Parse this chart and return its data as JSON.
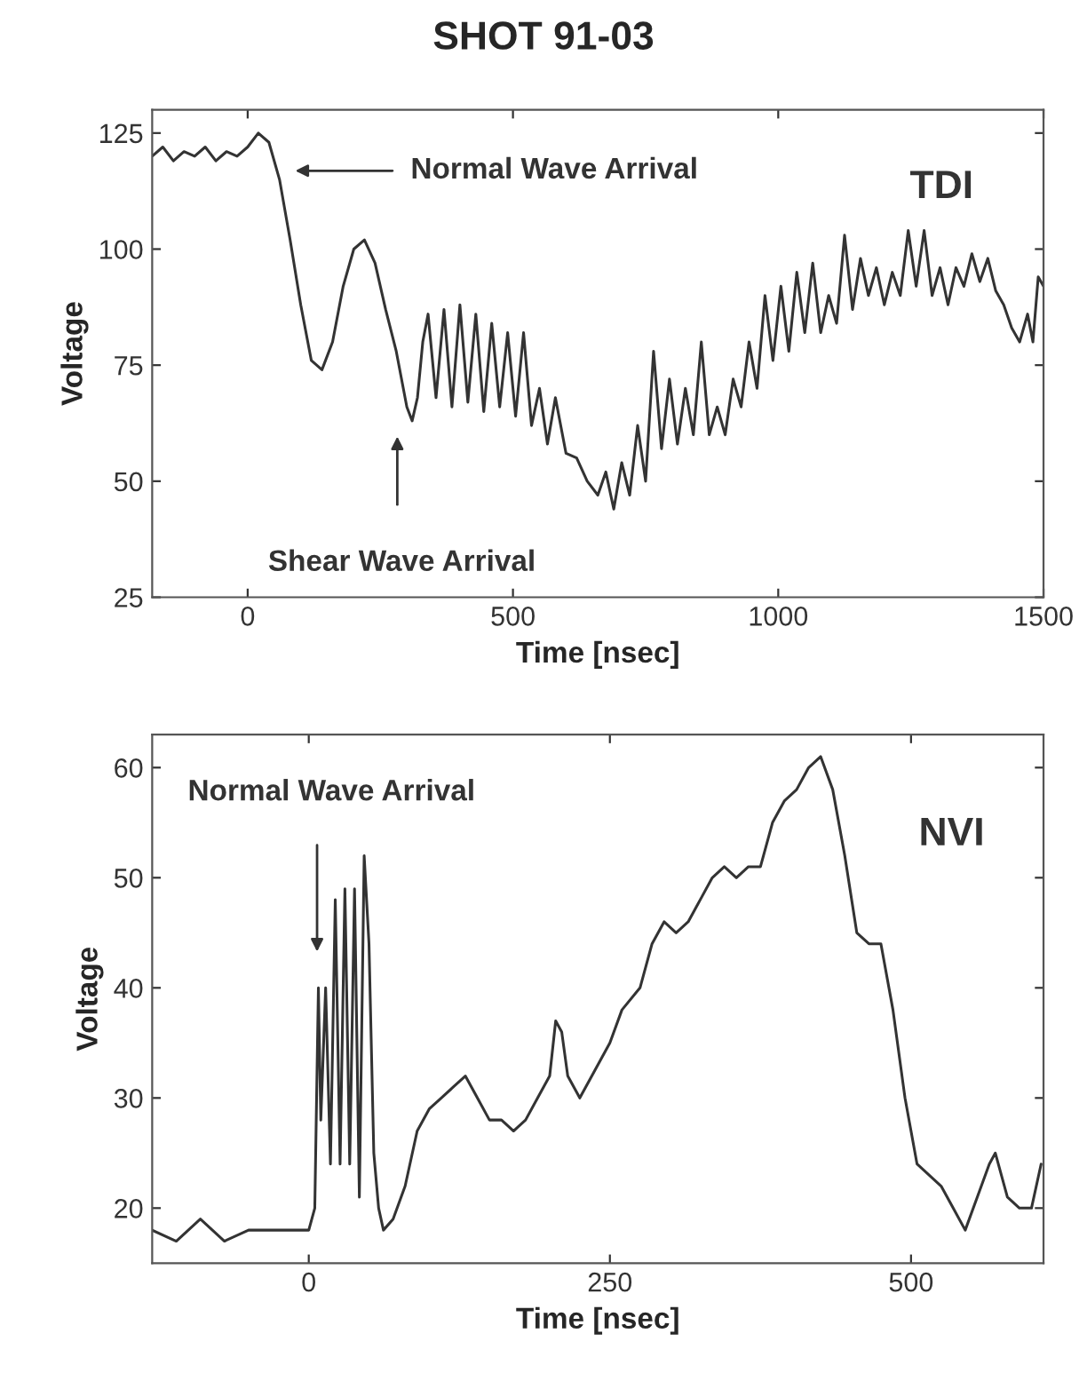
{
  "chart_data": [
    {
      "type": "line",
      "title": "SHOT 91-03",
      "xlabel": "Time [nsec]",
      "ylabel": "Voltage",
      "xlim": [
        -180,
        1500
      ],
      "ylim": [
        25,
        130
      ],
      "xticks": [
        0,
        500,
        1000,
        1500
      ],
      "yticks": [
        25,
        50,
        75,
        100,
        125
      ],
      "grid": false,
      "line_style": "solid",
      "marker": "none",
      "annotations": [
        "Normal Wave Arrival",
        "Shear Wave Arrival",
        "TDI"
      ],
      "series": [
        {
          "color": "#333333",
          "x": [
            -180,
            -160,
            -140,
            -120,
            -100,
            -80,
            -60,
            -40,
            -20,
            0,
            20,
            40,
            60,
            80,
            100,
            120,
            140,
            160,
            180,
            200,
            220,
            240,
            260,
            280,
            300,
            310,
            320,
            330,
            340,
            355,
            370,
            385,
            400,
            415,
            430,
            445,
            460,
            475,
            490,
            505,
            520,
            535,
            550,
            565,
            580,
            600,
            620,
            640,
            660,
            675,
            690,
            705,
            720,
            735,
            750,
            765,
            780,
            795,
            810,
            825,
            840,
            855,
            870,
            885,
            900,
            915,
            930,
            945,
            960,
            975,
            990,
            1005,
            1020,
            1035,
            1050,
            1065,
            1080,
            1095,
            1110,
            1125,
            1140,
            1155,
            1170,
            1185,
            1200,
            1215,
            1230,
            1245,
            1260,
            1275,
            1290,
            1305,
            1320,
            1335,
            1350,
            1365,
            1380,
            1395,
            1410,
            1425,
            1440,
            1455,
            1470,
            1480,
            1490,
            1500
          ],
          "values": [
            120,
            122,
            119,
            121,
            120,
            122,
            119,
            121,
            120,
            122,
            125,
            123,
            115,
            102,
            88,
            76,
            74,
            80,
            92,
            100,
            102,
            97,
            87,
            78,
            66,
            63,
            68,
            80,
            86,
            68,
            87,
            66,
            88,
            67,
            86,
            65,
            84,
            66,
            82,
            64,
            82,
            62,
            70,
            58,
            68,
            56,
            55,
            50,
            47,
            52,
            44,
            54,
            47,
            62,
            50,
            78,
            57,
            72,
            58,
            70,
            60,
            80,
            60,
            66,
            60,
            72,
            66,
            80,
            70,
            90,
            76,
            92,
            78,
            95,
            82,
            97,
            82,
            90,
            84,
            103,
            87,
            98,
            90,
            96,
            88,
            95,
            90,
            104,
            92,
            104,
            90,
            96,
            88,
            96,
            92,
            99,
            93,
            98,
            91,
            88,
            83,
            80,
            86,
            80,
            94,
            92
          ]
        }
      ]
    },
    {
      "type": "line",
      "xlabel": "Time [nsec]",
      "ylabel": "Voltage",
      "xlim": [
        -130,
        610
      ],
      "ylim": [
        15,
        63
      ],
      "xticks": [
        0,
        250,
        500
      ],
      "yticks": [
        20,
        30,
        40,
        50,
        60
      ],
      "grid": false,
      "line_style": "solid",
      "marker": "none",
      "annotations": [
        "Normal Wave Arrival",
        "NVI"
      ],
      "series": [
        {
          "color": "#333333",
          "x": [
            -130,
            -110,
            -90,
            -70,
            -50,
            -30,
            -10,
            0,
            5,
            8,
            10,
            14,
            18,
            22,
            26,
            30,
            34,
            38,
            42,
            46,
            50,
            54,
            58,
            62,
            70,
            80,
            90,
            100,
            110,
            120,
            130,
            140,
            150,
            160,
            170,
            180,
            190,
            200,
            205,
            210,
            215,
            225,
            235,
            250,
            260,
            275,
            285,
            295,
            305,
            315,
            325,
            335,
            345,
            355,
            365,
            375,
            385,
            395,
            405,
            415,
            425,
            435,
            445,
            455,
            465,
            475,
            485,
            495,
            505,
            515,
            525,
            535,
            545,
            555,
            565,
            570,
            580,
            590,
            600,
            608
          ],
          "values": [
            18,
            17,
            19,
            17,
            18,
            18,
            18,
            18,
            20,
            40,
            28,
            40,
            24,
            48,
            24,
            49,
            24,
            49,
            21,
            52,
            44,
            25,
            20,
            18,
            19,
            22,
            27,
            29,
            30,
            31,
            32,
            30,
            28,
            28,
            27,
            28,
            30,
            32,
            37,
            36,
            32,
            30,
            32,
            35,
            38,
            40,
            44,
            46,
            45,
            46,
            48,
            50,
            51,
            50,
            51,
            51,
            55,
            57,
            58,
            60,
            61,
            58,
            52,
            45,
            44,
            44,
            38,
            30,
            24,
            23,
            22,
            20,
            18,
            21,
            24,
            25,
            21,
            20,
            20,
            24
          ]
        }
      ]
    }
  ]
}
